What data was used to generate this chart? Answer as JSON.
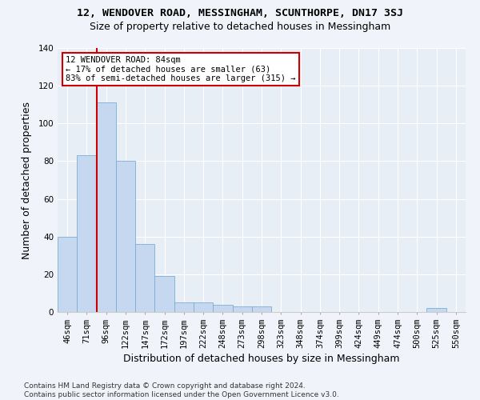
{
  "title_line1": "12, WENDOVER ROAD, MESSINGHAM, SCUNTHORPE, DN17 3SJ",
  "title_line2": "Size of property relative to detached houses in Messingham",
  "xlabel": "Distribution of detached houses by size in Messingham",
  "ylabel": "Number of detached properties",
  "categories": [
    "46sqm",
    "71sqm",
    "96sqm",
    "122sqm",
    "147sqm",
    "172sqm",
    "197sqm",
    "222sqm",
    "248sqm",
    "273sqm",
    "298sqm",
    "323sqm",
    "348sqm",
    "374sqm",
    "399sqm",
    "424sqm",
    "449sqm",
    "474sqm",
    "500sqm",
    "525sqm",
    "550sqm"
  ],
  "values": [
    40,
    83,
    111,
    80,
    36,
    19,
    5,
    5,
    4,
    3,
    3,
    0,
    0,
    0,
    0,
    0,
    0,
    0,
    0,
    2,
    0
  ],
  "bar_color": "#c5d8ef",
  "bar_edgecolor": "#7aafd4",
  "vline_color": "#cc0000",
  "annotation_line1": "12 WENDOVER ROAD: 84sqm",
  "annotation_line2": "← 17% of detached houses are smaller (63)",
  "annotation_line3": "83% of semi-detached houses are larger (315) →",
  "annotation_box_facecolor": "#ffffff",
  "annotation_box_edgecolor": "#cc0000",
  "ylim": [
    0,
    140
  ],
  "yticks": [
    0,
    20,
    40,
    60,
    80,
    100,
    120,
    140
  ],
  "fig_facecolor": "#f0f4fa",
  "ax_facecolor": "#e8eef6",
  "grid_color": "#ffffff",
  "footnote1": "Contains HM Land Registry data © Crown copyright and database right 2024.",
  "footnote2": "Contains public sector information licensed under the Open Government Licence v3.0.",
  "title1_fontsize": 9.5,
  "title2_fontsize": 9,
  "xlabel_fontsize": 9,
  "ylabel_fontsize": 9,
  "tick_fontsize": 7.5,
  "footnote_fontsize": 6.5
}
